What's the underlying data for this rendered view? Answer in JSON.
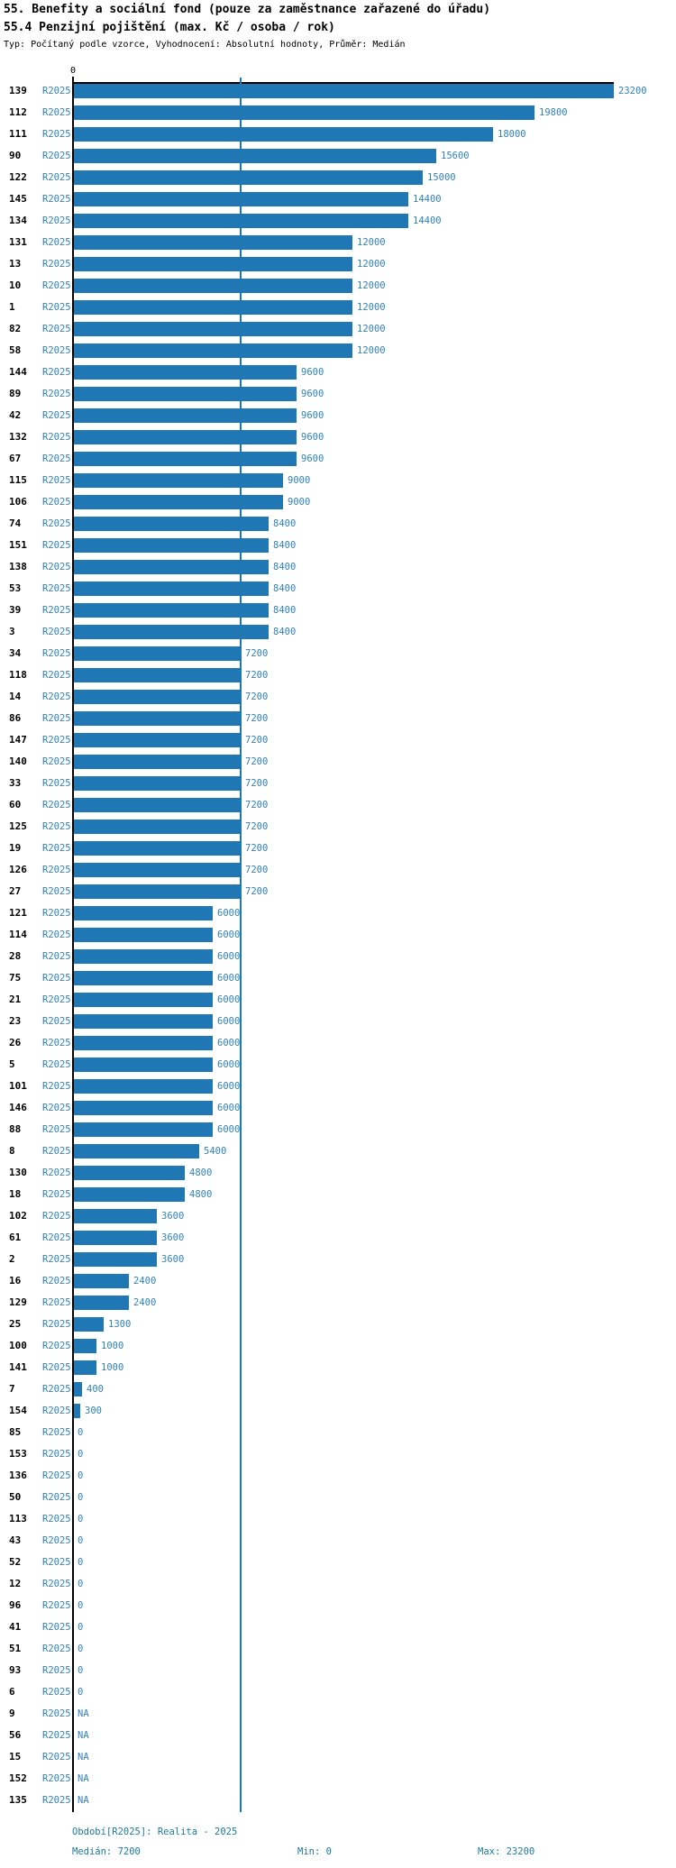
{
  "header": {
    "title": "55. Benefity a sociální fond (pouze za zaměstnance zařazené do úřadu)",
    "subtitle": "55.4 Penzijní pojištění (max. Kč / osoba / rok)",
    "meta_line": "Typ: Počítaný podle vzorce, Vyhodnocení: Absolutní hodnoty, Průměr: Medián"
  },
  "colors": {
    "bar": "#1f77b4",
    "label_blue": "#3181bd",
    "footer_text": "#1b7a9e",
    "axis": "#000000"
  },
  "chart_data": {
    "type": "bar",
    "orientation": "horizontal",
    "series_label": "R2025",
    "axis_zero_label": "0",
    "xlim": [
      0,
      23200
    ],
    "median_value": 7200,
    "grid": "median-line-only",
    "na_text": "NA",
    "rows": [
      {
        "id": "139",
        "value": 23200
      },
      {
        "id": "112",
        "value": 19800
      },
      {
        "id": "111",
        "value": 18000
      },
      {
        "id": "90",
        "value": 15600
      },
      {
        "id": "122",
        "value": 15000
      },
      {
        "id": "145",
        "value": 14400
      },
      {
        "id": "134",
        "value": 14400
      },
      {
        "id": "131",
        "value": 12000
      },
      {
        "id": "13",
        "value": 12000
      },
      {
        "id": "10",
        "value": 12000
      },
      {
        "id": "1",
        "value": 12000
      },
      {
        "id": "82",
        "value": 12000
      },
      {
        "id": "58",
        "value": 12000
      },
      {
        "id": "144",
        "value": 9600
      },
      {
        "id": "89",
        "value": 9600
      },
      {
        "id": "42",
        "value": 9600
      },
      {
        "id": "132",
        "value": 9600
      },
      {
        "id": "67",
        "value": 9600
      },
      {
        "id": "115",
        "value": 9000
      },
      {
        "id": "106",
        "value": 9000
      },
      {
        "id": "74",
        "value": 8400
      },
      {
        "id": "151",
        "value": 8400
      },
      {
        "id": "138",
        "value": 8400
      },
      {
        "id": "53",
        "value": 8400
      },
      {
        "id": "39",
        "value": 8400
      },
      {
        "id": "3",
        "value": 8400
      },
      {
        "id": "34",
        "value": 7200
      },
      {
        "id": "118",
        "value": 7200
      },
      {
        "id": "14",
        "value": 7200
      },
      {
        "id": "86",
        "value": 7200
      },
      {
        "id": "147",
        "value": 7200
      },
      {
        "id": "140",
        "value": 7200
      },
      {
        "id": "33",
        "value": 7200
      },
      {
        "id": "60",
        "value": 7200
      },
      {
        "id": "125",
        "value": 7200
      },
      {
        "id": "19",
        "value": 7200
      },
      {
        "id": "126",
        "value": 7200
      },
      {
        "id": "27",
        "value": 7200
      },
      {
        "id": "121",
        "value": 6000
      },
      {
        "id": "114",
        "value": 6000
      },
      {
        "id": "28",
        "value": 6000
      },
      {
        "id": "75",
        "value": 6000
      },
      {
        "id": "21",
        "value": 6000
      },
      {
        "id": "23",
        "value": 6000
      },
      {
        "id": "26",
        "value": 6000
      },
      {
        "id": "5",
        "value": 6000
      },
      {
        "id": "101",
        "value": 6000
      },
      {
        "id": "146",
        "value": 6000
      },
      {
        "id": "88",
        "value": 6000
      },
      {
        "id": "8",
        "value": 5400
      },
      {
        "id": "130",
        "value": 4800
      },
      {
        "id": "18",
        "value": 4800
      },
      {
        "id": "102",
        "value": 3600
      },
      {
        "id": "61",
        "value": 3600
      },
      {
        "id": "2",
        "value": 3600
      },
      {
        "id": "16",
        "value": 2400
      },
      {
        "id": "129",
        "value": 2400
      },
      {
        "id": "25",
        "value": 1300
      },
      {
        "id": "100",
        "value": 1000
      },
      {
        "id": "141",
        "value": 1000
      },
      {
        "id": "7",
        "value": 400
      },
      {
        "id": "154",
        "value": 300
      },
      {
        "id": "85",
        "value": 0
      },
      {
        "id": "153",
        "value": 0
      },
      {
        "id": "136",
        "value": 0
      },
      {
        "id": "50",
        "value": 0
      },
      {
        "id": "113",
        "value": 0
      },
      {
        "id": "43",
        "value": 0
      },
      {
        "id": "52",
        "value": 0
      },
      {
        "id": "12",
        "value": 0
      },
      {
        "id": "96",
        "value": 0
      },
      {
        "id": "41",
        "value": 0
      },
      {
        "id": "51",
        "value": 0
      },
      {
        "id": "93",
        "value": 0
      },
      {
        "id": "6",
        "value": 0
      },
      {
        "id": "9",
        "value": "NA"
      },
      {
        "id": "56",
        "value": "NA"
      },
      {
        "id": "15",
        "value": "NA"
      },
      {
        "id": "152",
        "value": "NA"
      },
      {
        "id": "135",
        "value": "NA"
      }
    ]
  },
  "footer": {
    "period_line": "Období[R2025]: Realita - 2025",
    "median_label": "Medián: 7200",
    "min_label": "Min: 0",
    "max_label": "Max: 23200"
  }
}
